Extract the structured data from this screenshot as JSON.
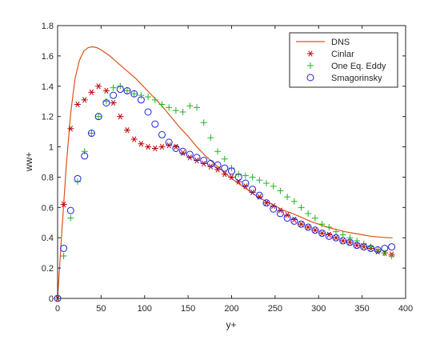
{
  "chart_data": {
    "type": "line",
    "title": "",
    "xlabel": "y+",
    "ylabel": "ww+",
    "xlim": [
      0,
      400
    ],
    "ylim": [
      0,
      1.8
    ],
    "x_ticks": [
      0,
      50,
      100,
      150,
      200,
      250,
      300,
      350,
      400
    ],
    "y_ticks": [
      0,
      0.2,
      0.4,
      0.6,
      0.8,
      1,
      1.2,
      1.4,
      1.6,
      1.8
    ],
    "x_tick_labels": [
      "0",
      "50",
      "100",
      "150",
      "200",
      "250",
      "300",
      "350",
      "400"
    ],
    "y_tick_labels": [
      "0",
      "0.2",
      "0.4",
      "0.6",
      "0.8",
      "1",
      "1.2",
      "1.4",
      "1.6",
      "1.8"
    ],
    "grid": false,
    "legend_position": "top-right",
    "series": [
      {
        "name": "DNS",
        "marker": "line",
        "color": "#D95319",
        "x": [
          0,
          5,
          10,
          15,
          20,
          25,
          30,
          35,
          40,
          45,
          50,
          60,
          70,
          80,
          90,
          100,
          110,
          120,
          130,
          140,
          150,
          160,
          170,
          180,
          190,
          200,
          210,
          220,
          230,
          240,
          250,
          260,
          270,
          280,
          290,
          300,
          310,
          320,
          330,
          340,
          350,
          360,
          370,
          380,
          385
        ],
        "y": [
          0,
          0.45,
          0.88,
          1.22,
          1.45,
          1.57,
          1.63,
          1.655,
          1.66,
          1.655,
          1.64,
          1.6,
          1.55,
          1.5,
          1.45,
          1.39,
          1.33,
          1.27,
          1.2,
          1.13,
          1.07,
          1.0,
          0.94,
          0.89,
          0.84,
          0.79,
          0.75,
          0.71,
          0.67,
          0.64,
          0.61,
          0.58,
          0.56,
          0.535,
          0.51,
          0.49,
          0.47,
          0.455,
          0.44,
          0.43,
          0.42,
          0.41,
          0.405,
          0.4,
          0.4
        ]
      },
      {
        "name": "Cinlar",
        "marker": "asterisk",
        "color": "#C00000",
        "x": [
          0,
          7,
          15,
          23,
          31,
          39,
          47,
          56,
          64,
          72,
          80,
          88,
          96,
          104,
          112,
          120,
          128,
          136,
          144,
          152,
          160,
          168,
          176,
          184,
          192,
          200,
          208,
          216,
          224,
          232,
          240,
          248,
          256,
          264,
          272,
          280,
          288,
          296,
          304,
          312,
          320,
          328,
          336,
          344,
          352,
          360,
          368,
          376,
          384
        ],
        "y": [
          0,
          0.62,
          1.12,
          1.28,
          1.31,
          1.36,
          1.4,
          1.37,
          1.29,
          1.2,
          1.11,
          1.05,
          1.02,
          1.0,
          0.99,
          1.0,
          1.01,
          1.0,
          0.96,
          0.93,
          0.91,
          0.89,
          0.87,
          0.85,
          0.82,
          0.8,
          0.77,
          0.74,
          0.7,
          0.67,
          0.63,
          0.61,
          0.58,
          0.55,
          0.52,
          0.49,
          0.47,
          0.45,
          0.43,
          0.42,
          0.4,
          0.38,
          0.37,
          0.35,
          0.34,
          0.33,
          0.31,
          0.3,
          0.29
        ]
      },
      {
        "name": "One Eq. Eddy",
        "marker": "plus",
        "color": "#22B422",
        "x": [
          0,
          7,
          15,
          23,
          31,
          39,
          47,
          56,
          64,
          72,
          80,
          88,
          96,
          104,
          112,
          120,
          128,
          136,
          144,
          152,
          160,
          168,
          176,
          184,
          192,
          200,
          208,
          216,
          224,
          232,
          240,
          248,
          256,
          264,
          272,
          280,
          288,
          296,
          304,
          312,
          320,
          328,
          336,
          344,
          352,
          360,
          368,
          376,
          384
        ],
        "y": [
          0,
          0.28,
          0.53,
          0.77,
          0.97,
          1.09,
          1.2,
          1.3,
          1.39,
          1.4,
          1.37,
          1.35,
          1.34,
          1.33,
          1.31,
          1.28,
          1.26,
          1.24,
          1.23,
          1.27,
          1.26,
          1.16,
          1.06,
          0.97,
          0.92,
          0.86,
          0.82,
          0.81,
          0.8,
          0.78,
          0.76,
          0.74,
          0.71,
          0.67,
          0.64,
          0.6,
          0.56,
          0.53,
          0.49,
          0.47,
          0.44,
          0.42,
          0.4,
          0.38,
          0.36,
          0.34,
          0.32,
          0.3,
          0.28
        ]
      },
      {
        "name": "Smagorinsky",
        "marker": "circle",
        "color": "#1F1FD9",
        "x": [
          0,
          7,
          15,
          23,
          31,
          39,
          47,
          56,
          64,
          72,
          80,
          88,
          96,
          104,
          112,
          120,
          128,
          136,
          144,
          152,
          160,
          168,
          176,
          184,
          192,
          200,
          208,
          216,
          224,
          232,
          240,
          248,
          256,
          264,
          272,
          280,
          288,
          296,
          304,
          312,
          320,
          328,
          336,
          344,
          352,
          360,
          368,
          376,
          384
        ],
        "y": [
          0,
          0.33,
          0.58,
          0.79,
          0.94,
          1.09,
          1.2,
          1.29,
          1.34,
          1.38,
          1.37,
          1.35,
          1.31,
          1.23,
          1.15,
          1.08,
          1.03,
          0.99,
          0.97,
          0.95,
          0.93,
          0.91,
          0.89,
          0.88,
          0.86,
          0.84,
          0.8,
          0.76,
          0.72,
          0.68,
          0.63,
          0.59,
          0.56,
          0.53,
          0.51,
          0.49,
          0.47,
          0.45,
          0.43,
          0.41,
          0.4,
          0.38,
          0.37,
          0.35,
          0.34,
          0.33,
          0.32,
          0.33,
          0.34
        ]
      }
    ]
  }
}
